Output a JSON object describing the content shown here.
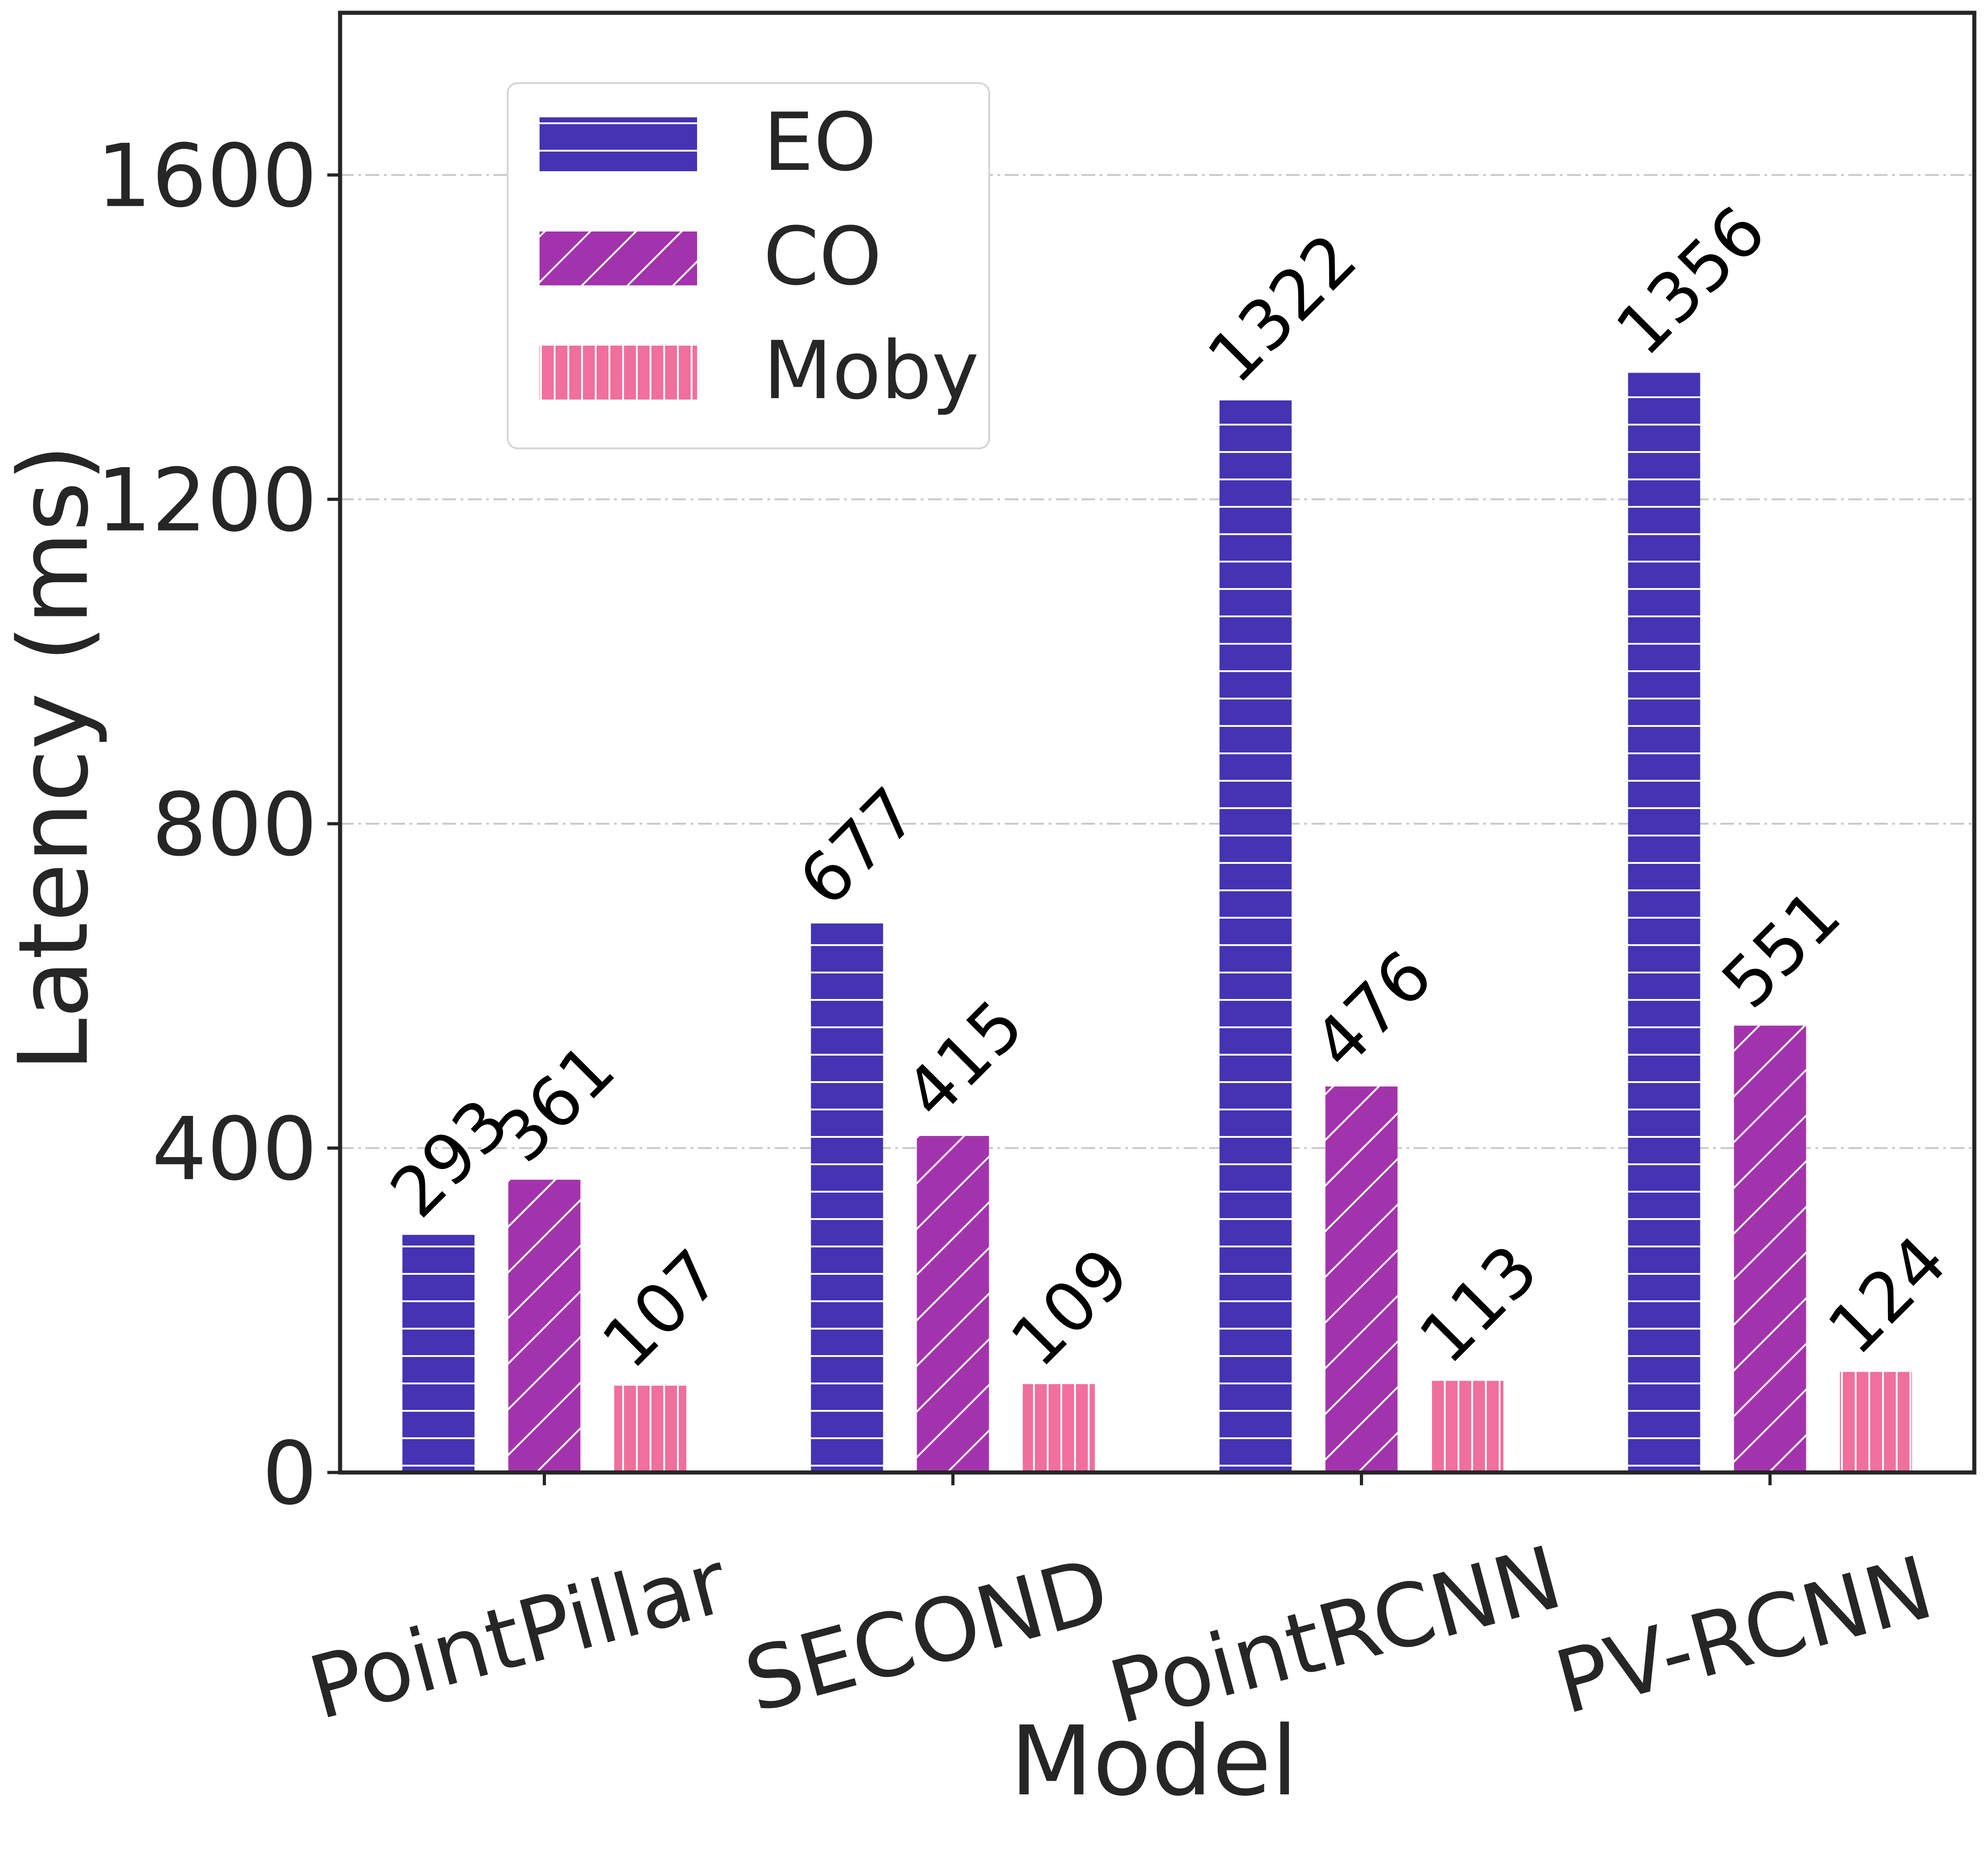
{
  "chart_data": {
    "type": "bar",
    "xlabel": "Model",
    "ylabel": "Latency (ms)",
    "ylim": [
      0,
      1800
    ],
    "yticks": [
      0,
      400,
      800,
      1200,
      1600
    ],
    "grid": "horizontal dash-dot",
    "legend": "top-left",
    "categories": [
      "PointPillar",
      "SECOND",
      "PointRCNN",
      "PV-RCNN"
    ],
    "series": [
      {
        "name": "EO",
        "values": [
          293,
          677,
          1322,
          1356
        ],
        "color": "#4433b3",
        "hatch": "horizontal"
      },
      {
        "name": "CO",
        "values": [
          361,
          415,
          476,
          551
        ],
        "color": "#a333ad",
        "hatch": "diagonal"
      },
      {
        "name": "Moby",
        "values": [
          107,
          109,
          113,
          124
        ],
        "color": "#f06f9c",
        "hatch": "vertical"
      }
    ]
  }
}
